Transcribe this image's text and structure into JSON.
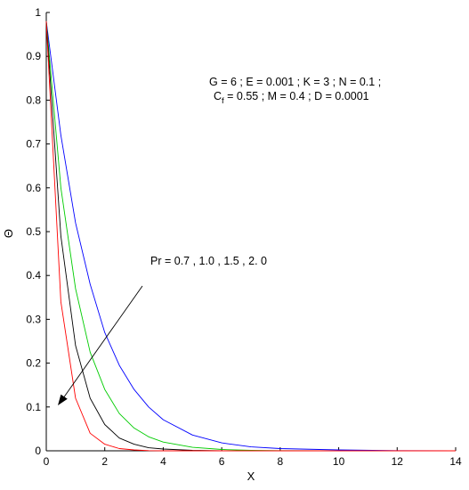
{
  "chart_data": {
    "type": "line",
    "title": "",
    "xlabel": "X",
    "ylabel": "Θ",
    "xlim": [
      0,
      14
    ],
    "ylim": [
      0,
      1
    ],
    "xticks": [
      0,
      2,
      4,
      6,
      8,
      10,
      12,
      14
    ],
    "yticks": [
      0,
      0.1,
      0.2,
      0.3,
      0.4,
      0.5,
      0.6,
      0.7,
      0.8,
      0.9,
      1
    ],
    "grid": false,
    "legend": "none",
    "parameters_line1": "G = 6 ;  E = 0.001 ; K = 3 ; N = 0.1 ;",
    "parameters_line2": {
      "pre": "C",
      "sub": "f",
      "post": " = 0.55 ; M = 0.4 ; D = 0.0001"
    },
    "arrow_annotation": "Pr = 0.7 , 1.0 , 1.5 , 2. 0",
    "series": [
      {
        "color": "#0000ff",
        "x": [
          0,
          0.5,
          1,
          1.5,
          2,
          2.5,
          3,
          3.5,
          4,
          5,
          6,
          7,
          8,
          10,
          12,
          14
        ],
        "y": [
          0.98,
          0.72,
          0.52,
          0.38,
          0.27,
          0.195,
          0.14,
          0.1,
          0.071,
          0.036,
          0.018,
          0.009,
          0.005,
          0.002,
          0.0005,
          0.0001
        ]
      },
      {
        "color": "#00cc00",
        "x": [
          0,
          0.5,
          1,
          1.5,
          2,
          2.5,
          3,
          3.5,
          4,
          5,
          6,
          7,
          8,
          10,
          12,
          14
        ],
        "y": [
          0.98,
          0.6,
          0.37,
          0.225,
          0.14,
          0.085,
          0.052,
          0.032,
          0.02,
          0.008,
          0.003,
          0.001,
          0.0005,
          0,
          0,
          0
        ]
      },
      {
        "color": "#000000",
        "x": [
          0,
          0.5,
          1,
          1.5,
          2,
          2.5,
          3,
          3.5,
          4,
          5,
          6,
          7,
          8,
          10,
          12,
          14
        ],
        "y": [
          0.98,
          0.49,
          0.24,
          0.12,
          0.06,
          0.029,
          0.015,
          0.007,
          0.004,
          0.001,
          0.0003,
          0,
          0,
          0,
          0,
          0
        ]
      },
      {
        "color": "#ff0000",
        "x": [
          0,
          0.5,
          1,
          1.5,
          2,
          2.5,
          3,
          3.5,
          4,
          5,
          6,
          7,
          8,
          10,
          12,
          14
        ],
        "y": [
          0.98,
          0.34,
          0.12,
          0.04,
          0.015,
          0.005,
          0.002,
          0.0005,
          0,
          0,
          0,
          0,
          0,
          0,
          0,
          0
        ]
      }
    ]
  }
}
